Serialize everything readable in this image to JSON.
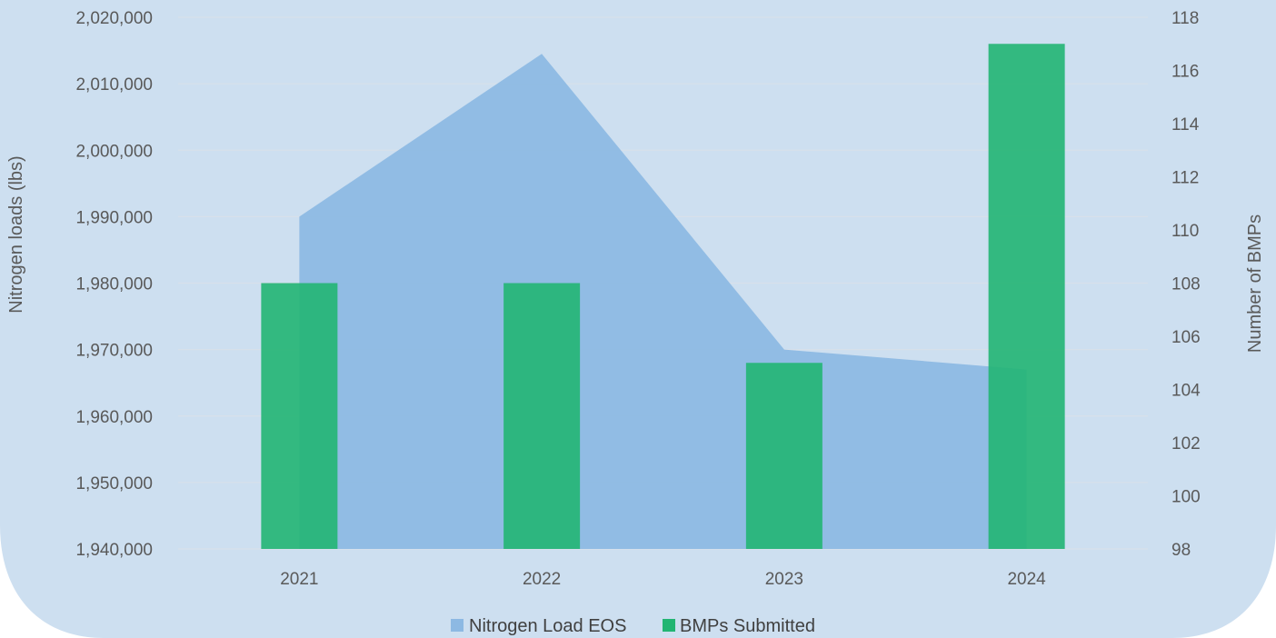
{
  "colors": {
    "panel": "#cddff0",
    "gridline": "#d7e0ea",
    "area": "#8db9e3",
    "bars": "#22b573",
    "text": "#595959"
  },
  "chart_data": {
    "type": "bar",
    "combo": "area (left axis) + clustered bar (right axis)",
    "categories": [
      "2021",
      "2022",
      "2023",
      "2024"
    ],
    "series": [
      {
        "name": "Nitrogen Load EOS",
        "type": "area",
        "axis": "left",
        "values": [
          1990000,
          2014500,
          1970000,
          1967000
        ]
      },
      {
        "name": "BMPs Submitted",
        "type": "bar",
        "axis": "right",
        "values": [
          108,
          108,
          105,
          117
        ]
      }
    ],
    "y_left": {
      "label": "Nitrogen loads (lbs)",
      "range": [
        1940000,
        2020000
      ],
      "ticks": [
        "1,940,000",
        "1,950,000",
        "1,960,000",
        "1,970,000",
        "1,980,000",
        "1,990,000",
        "2,000,000",
        "2,010,000",
        "2,020,000"
      ]
    },
    "y_right": {
      "label": "Number of BMPs",
      "range": [
        98,
        118
      ],
      "ticks": [
        "98",
        "100",
        "102",
        "104",
        "106",
        "108",
        "110",
        "112",
        "114",
        "116",
        "118"
      ]
    },
    "grid": true,
    "legend": {
      "position": "bottom",
      "items": [
        "Nitrogen Load EOS",
        "BMPs Submitted"
      ]
    }
  }
}
